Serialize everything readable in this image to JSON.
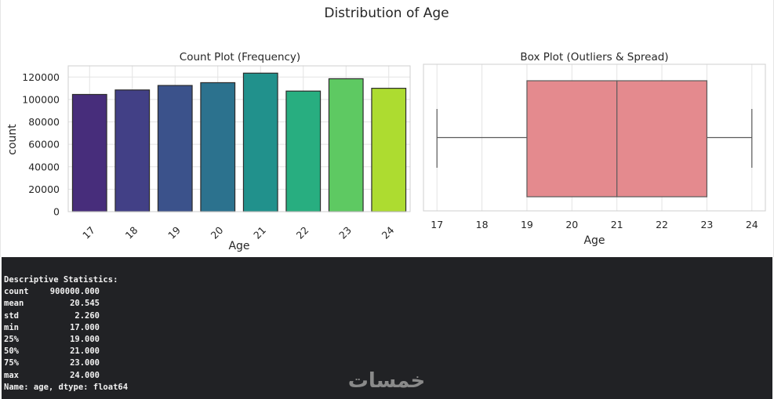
{
  "figure": {
    "suptitle": "Distribution of Age"
  },
  "chart_data": [
    {
      "type": "bar",
      "title": "Count Plot (Frequency)",
      "xlabel": "Age",
      "ylabel": "count",
      "categories": [
        "17",
        "18",
        "19",
        "20",
        "21",
        "22",
        "23",
        "24"
      ],
      "values": [
        104500,
        108500,
        112500,
        115000,
        123500,
        107500,
        118500,
        110000
      ],
      "ylim": [
        0,
        130000
      ],
      "yticks": [
        0,
        20000,
        40000,
        60000,
        80000,
        100000,
        120000
      ],
      "grid": true,
      "colors": [
        "#472d7b",
        "#424086",
        "#3b528b",
        "#2c728e",
        "#21918c",
        "#28ae80",
        "#5ec962",
        "#addc30"
      ]
    },
    {
      "type": "box",
      "title": "Box Plot (Outliers & Spread)",
      "xlabel": "Age",
      "xlim": [
        16.7,
        24.3
      ],
      "xticks": [
        17,
        18,
        19,
        20,
        21,
        22,
        23,
        24
      ],
      "min": 17,
      "q1": 19,
      "median": 21,
      "q3": 23,
      "max": 24,
      "grid": true,
      "color": "#e48a8e"
    }
  ],
  "console": {
    "header": "Descriptive Statistics:",
    "rows": [
      {
        "key": "count",
        "value": "900000.000"
      },
      {
        "key": "mean",
        "value": "20.545"
      },
      {
        "key": "std",
        "value": "2.260"
      },
      {
        "key": "min",
        "value": "17.000"
      },
      {
        "key": "25%",
        "value": "19.000"
      },
      {
        "key": "50%",
        "value": "21.000"
      },
      {
        "key": "75%",
        "value": "23.000"
      },
      {
        "key": "max",
        "value": "24.000"
      }
    ],
    "footer": "Name: age, dtype: float64"
  },
  "watermark": {
    "text": "خمسات",
    "color": "#8a8a8a"
  }
}
